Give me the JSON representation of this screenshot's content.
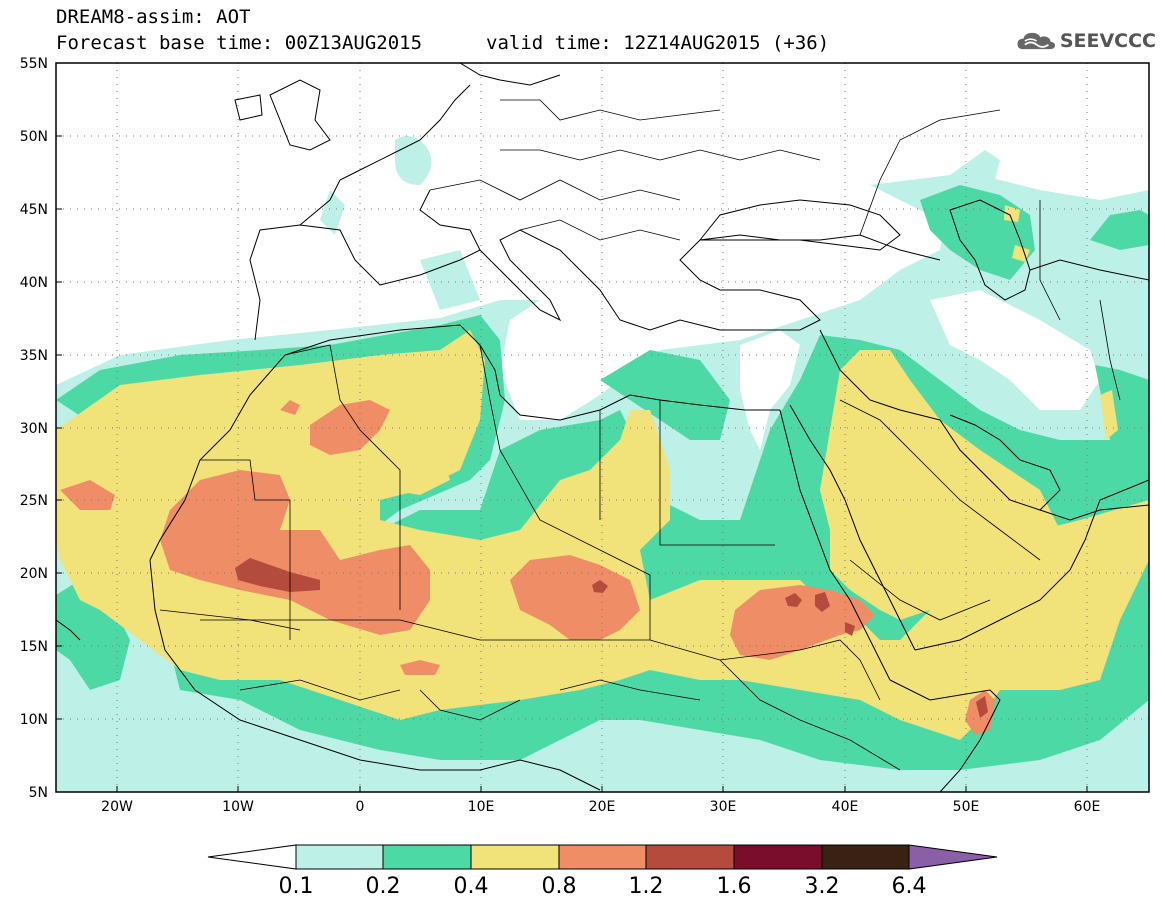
{
  "header": {
    "title": "DREAM8-assim: AOT",
    "base_time": "Forecast base time: 00Z13AUG2015",
    "valid_time": "valid time: 12Z14AUG2015 (+36)"
  },
  "logo": {
    "text": "SEEVCCC",
    "icon": "cloud-icon"
  },
  "map": {
    "lon_range": [
      -25,
      65
    ],
    "lat_range": [
      5,
      55
    ],
    "lat_ticks": [
      "5N",
      "10N",
      "15N",
      "20N",
      "25N",
      "30N",
      "35N",
      "40N",
      "45N",
      "50N",
      "55N"
    ],
    "lon_ticks": [
      "20W",
      "10W",
      "0",
      "10E",
      "20E",
      "30E",
      "40E",
      "50E",
      "60E"
    ],
    "gridlines": "dotted"
  },
  "legend": {
    "levels": [
      "0.1",
      "0.2",
      "0.4",
      "0.8",
      "1.2",
      "1.6",
      "3.2",
      "6.4"
    ],
    "colors": [
      "#ffffff",
      "#bdf0e6",
      "#4dd9a6",
      "#f2e27a",
      "#ee8d66",
      "#b44b3d",
      "#7a0d2c",
      "#3a2114",
      "#8a5fa8"
    ]
  },
  "colors": {
    "aot_0_1": "#bdf0e6",
    "aot_0_2": "#4dd9a6",
    "aot_0_4": "#f2e27a",
    "aot_0_8": "#ee8d66",
    "aot_1_2": "#b44b3d",
    "aot_1_6": "#7a0d2c",
    "aot_3_2": "#3a2114",
    "aot_6_4": "#8a5fa8"
  }
}
